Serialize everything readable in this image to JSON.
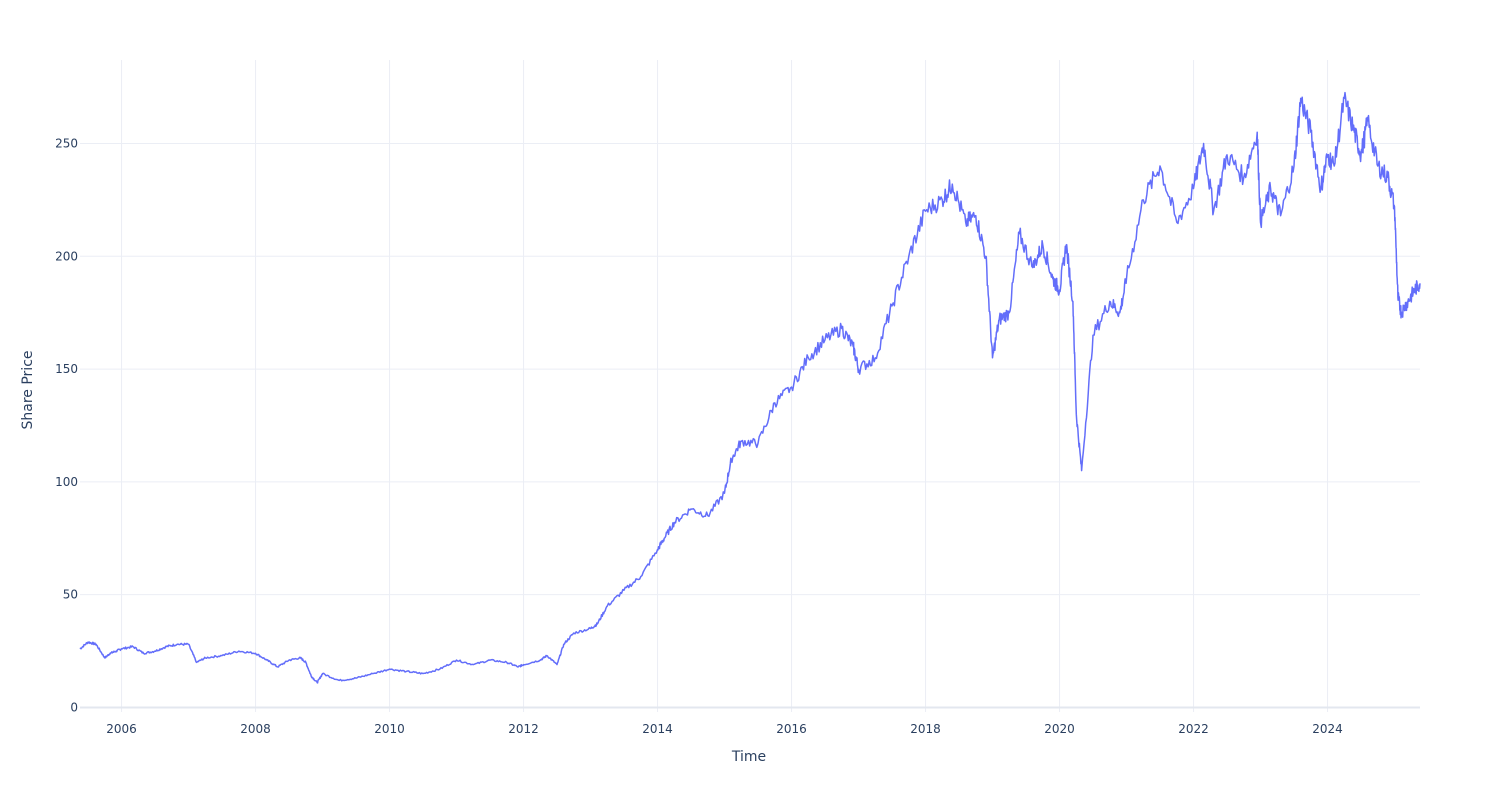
{
  "chart_data": {
    "type": "line",
    "title": "",
    "xlabel": "Time",
    "ylabel": "Share Price",
    "xlim": [
      2005.38,
      2025.38
    ],
    "ylim": [
      -2,
      287
    ],
    "x_ticks": [
      2006,
      2008,
      2010,
      2012,
      2014,
      2016,
      2018,
      2020,
      2022,
      2024
    ],
    "x_tick_labels": [
      "2006",
      "2008",
      "2010",
      "2012",
      "2014",
      "2016",
      "2018",
      "2020",
      "2022",
      "2024"
    ],
    "y_ticks": [
      0,
      50,
      100,
      150,
      200,
      250
    ],
    "y_tick_labels": [
      "0",
      "50",
      "100",
      "150",
      "200",
      "250"
    ],
    "grid": true,
    "legend": "none",
    "series": [
      {
        "color": "#636efa",
        "x": [
          2005.38,
          2005.5,
          2005.62,
          2005.75,
          2005.83,
          2005.92,
          2006.0,
          2006.17,
          2006.33,
          2006.5,
          2006.67,
          2006.83,
          2007.0,
          2007.12,
          2007.25,
          2007.5,
          2007.75,
          2008.0,
          2008.17,
          2008.33,
          2008.5,
          2008.67,
          2008.75,
          2008.83,
          2008.92,
          2009.0,
          2009.25,
          2009.5,
          2009.75,
          2010.0,
          2010.25,
          2010.5,
          2010.75,
          2011.0,
          2011.25,
          2011.5,
          2011.75,
          2011.92,
          2012.0,
          2012.25,
          2012.35,
          2012.5,
          2012.6,
          2012.75,
          2013.0,
          2013.1,
          2013.25,
          2013.5,
          2013.75,
          2014.0,
          2014.1,
          2014.25,
          2014.5,
          2014.75,
          2015.0,
          2015.1,
          2015.25,
          2015.5,
          2015.75,
          2016.0,
          2016.25,
          2016.5,
          2016.75,
          2016.92,
          2017.0,
          2017.25,
          2017.5,
          2017.75,
          2018.0,
          2018.25,
          2018.4,
          2018.6,
          2018.75,
          2018.9,
          2019.0,
          2019.1,
          2019.25,
          2019.4,
          2019.6,
          2019.75,
          2019.9,
          2020.0,
          2020.1,
          2020.2,
          2020.25,
          2020.33,
          2020.5,
          2020.75,
          2020.9,
          2021.0,
          2021.25,
          2021.5,
          2021.75,
          2022.0,
          2022.15,
          2022.3,
          2022.5,
          2022.75,
          2022.95,
          2023.0,
          2023.15,
          2023.3,
          2023.5,
          2023.6,
          2023.75,
          2023.9,
          2024.0,
          2024.1,
          2024.25,
          2024.4,
          2024.5,
          2024.6,
          2024.75,
          2024.9,
          2025.0,
          2025.05,
          2025.1,
          2025.2,
          2025.3,
          2025.38
        ],
        "y": [
          26,
          29,
          28,
          22,
          24,
          25,
          26,
          27,
          24,
          25,
          27,
          28,
          28,
          20,
          22,
          23,
          25,
          24,
          21,
          18,
          21,
          22,
          20,
          14,
          11,
          15,
          12,
          13,
          15,
          17,
          16,
          15,
          17,
          21,
          19,
          21,
          20,
          18,
          19,
          21,
          23,
          19,
          28,
          33,
          35,
          37,
          45,
          52,
          58,
          70,
          75,
          82,
          88,
          85,
          95,
          110,
          118,
          117,
          135,
          142,
          155,
          163,
          168,
          160,
          150,
          155,
          178,
          200,
          220,
          225,
          232,
          215,
          218,
          200,
          155,
          172,
          175,
          210,
          195,
          205,
          190,
          185,
          205,
          180,
          130,
          105,
          165,
          180,
          175,
          190,
          225,
          240,
          215,
          230,
          250,
          220,
          245,
          235,
          255,
          215,
          230,
          218,
          240,
          270,
          255,
          230,
          245,
          240,
          270,
          255,
          245,
          260,
          240,
          235,
          222,
          182,
          175,
          180,
          185,
          188
        ]
      }
    ]
  }
}
